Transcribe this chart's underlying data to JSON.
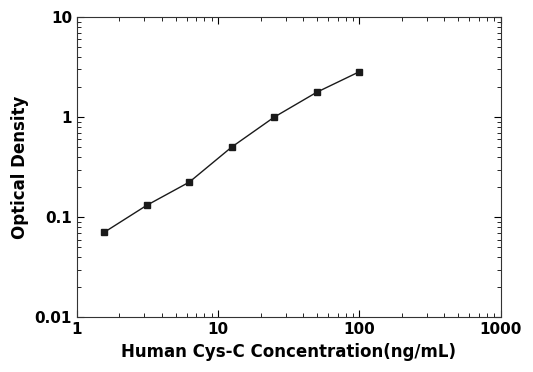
{
  "x": [
    1.5625,
    3.125,
    6.25,
    12.5,
    25,
    50,
    100
  ],
  "y": [
    0.071,
    0.132,
    0.225,
    0.505,
    1.005,
    1.78,
    2.85
  ],
  "xlabel": "Human Cys-C Concentration(ng/mL)",
  "ylabel": "Optical Density",
  "xlim": [
    1,
    1000
  ],
  "ylim": [
    0.01,
    10
  ],
  "xticks": [
    1,
    10,
    100,
    1000
  ],
  "yticks": [
    0.01,
    0.1,
    1,
    10
  ],
  "marker": "s",
  "marker_color": "#1a1a1a",
  "line_color": "#555555",
  "marker_size": 5,
  "line_width": 1.0,
  "bg_color": "#ffffff",
  "tick_label_size": 11,
  "axis_label_size": 12,
  "axis_label_bold": true
}
